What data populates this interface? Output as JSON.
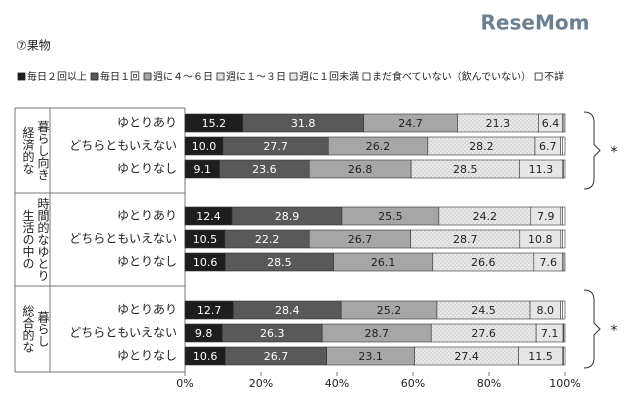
{
  "chart_data": {
    "type": "stacked-bar-horizontal",
    "title": "⑦果物",
    "logo": "ReseMom",
    "groups": [
      {
        "label": [
          "経済的な",
          "暮らし向き"
        ],
        "annotation": "*"
      },
      {
        "label": [
          "生活の中の",
          "時間的なゆとり"
        ]
      },
      {
        "label": [
          "総合的な",
          "暮らし"
        ],
        "annotation": "*"
      }
    ],
    "categories": [
      "ゆとりあり",
      "どちらともいえない",
      "ゆとりなし",
      "ゆとりあり",
      "どちらともいえない",
      "ゆとりなし",
      "ゆとりあり",
      "どちらともいえない",
      "ゆとりなし"
    ],
    "series": [
      {
        "name": "毎日２回以上",
        "color": "#1e1e1e",
        "values": [
          15.2,
          10.0,
          9.1,
          12.4,
          10.5,
          10.6,
          12.7,
          9.8,
          10.6
        ],
        "value_labels": [
          "15.2",
          "10.0",
          "9.1",
          "12.4",
          "10.5",
          "10.6",
          "12.7",
          "9.8",
          "10.6"
        ]
      },
      {
        "name": "毎日１回",
        "color": "#595959",
        "values": [
          31.8,
          27.7,
          23.6,
          28.9,
          22.2,
          28.5,
          28.4,
          26.3,
          26.7
        ],
        "value_labels": [
          "31.8",
          "27.7",
          "23.6",
          "28.9",
          "22.2",
          "28.5",
          "28.4",
          "26.3",
          "26.7"
        ]
      },
      {
        "name": "週に４～６日",
        "color": "#a6a6a6",
        "values": [
          24.7,
          26.2,
          26.8,
          25.5,
          26.7,
          26.1,
          25.2,
          28.7,
          23.1
        ],
        "value_labels": [
          "24.7",
          "26.2",
          "26.8",
          "25.5",
          "26.7",
          "26.1",
          "25.2",
          "28.7",
          "23.1"
        ]
      },
      {
        "name": "週に１～３日",
        "color": "#dcdcdc",
        "pattern": "dots",
        "values": [
          21.3,
          28.2,
          28.5,
          24.2,
          28.7,
          26.6,
          24.5,
          27.6,
          27.4
        ],
        "value_labels": [
          "21.3",
          "28.2",
          "28.5",
          "24.2",
          "28.7",
          "26.6",
          "24.5",
          "27.6",
          "27.4"
        ]
      },
      {
        "name": "週に１回未満",
        "color": "#e6e6e6",
        "values": [
          6.4,
          6.7,
          11.3,
          7.9,
          10.8,
          7.6,
          8.0,
          7.1,
          11.5
        ],
        "value_labels": [
          "6.4",
          "6.7",
          "11.3",
          "7.9",
          "10.8",
          "7.6",
          "8.0",
          "7.1",
          "11.5"
        ]
      },
      {
        "name": "まだ食べていない（飲んでいない）",
        "color": "#ffffff",
        "values": [
          0.3,
          0.5,
          0.3,
          0.5,
          0.5,
          0.3,
          0.6,
          0.2,
          0.3
        ]
      },
      {
        "name": "不詳",
        "color": "#ffffff",
        "values": [
          0.3,
          0.7,
          0.4,
          0.6,
          0.6,
          0.3,
          0.6,
          0.3,
          0.4
        ]
      }
    ],
    "xlim": [
      0,
      100
    ],
    "xticks": [
      {
        "value": 0,
        "label": "0%"
      },
      {
        "value": 20,
        "label": "20%"
      },
      {
        "value": 40,
        "label": "40%"
      },
      {
        "value": 60,
        "label": "60%"
      },
      {
        "value": 80,
        "label": "80%"
      },
      {
        "value": 100,
        "label": "100%"
      }
    ]
  }
}
